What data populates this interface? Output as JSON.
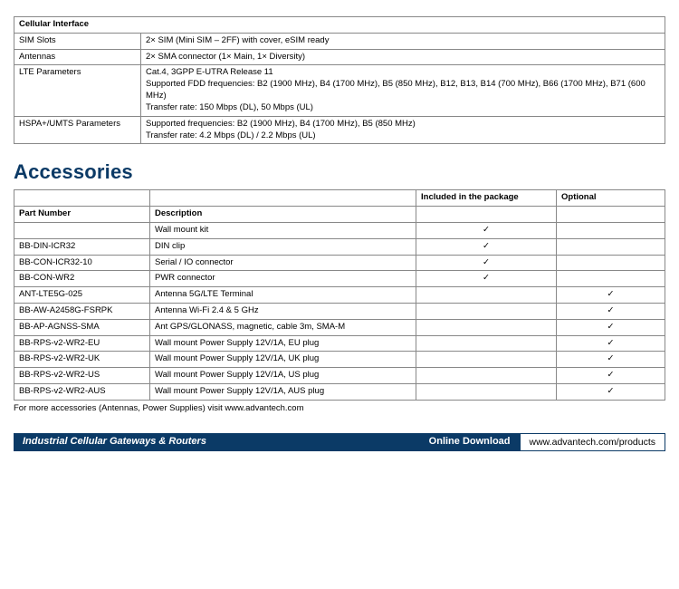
{
  "colors": {
    "brand": "#0b3a66",
    "border": "#888888",
    "text": "#000000",
    "bg": "#ffffff"
  },
  "cellular": {
    "header": "Cellular Interface",
    "rows": [
      {
        "label": "SIM Slots",
        "value": "2× SIM (Mini SIM – 2FF) with cover, eSIM ready"
      },
      {
        "label": "Antennas",
        "value": "2× SMA connector (1× Main, 1× Diversity)"
      },
      {
        "label": "LTE Parameters",
        "value": "Cat.4, 3GPP E-UTRA Release 11\nSupported FDD frequencies: B2 (1900 MHz), B4 (1700 MHz), B5 (850 MHz), B12, B13, B14 (700 MHz), B66 (1700 MHz), B71 (600 MHz)\nTransfer rate: 150 Mbps (DL), 50 Mbps (UL)"
      },
      {
        "label": "HSPA+/UMTS Parameters",
        "value": "Supported frequencies: B2 (1900 MHz), B4 (1700 MHz), B5 (850 MHz)\nTransfer rate: 4.2 Mbps (DL) / 2.2 Mbps (UL)"
      }
    ]
  },
  "accessories": {
    "title": "Accessories",
    "columns": {
      "pn": "Part Number",
      "desc": "Description",
      "included": "Included in the package",
      "optional": "Optional"
    },
    "rows": [
      {
        "pn": "",
        "desc": "Wall mount kit",
        "inc": "✓",
        "opt": ""
      },
      {
        "pn": "BB-DIN-ICR32",
        "desc": "DIN clip",
        "inc": "✓",
        "opt": ""
      },
      {
        "pn": "BB-CON-ICR32-10",
        "desc": "Serial / IO connector",
        "inc": "✓",
        "opt": ""
      },
      {
        "pn": "BB-CON-WR2",
        "desc": "PWR connector",
        "inc": "✓",
        "opt": ""
      },
      {
        "pn": "ANT-LTE5G-025",
        "desc": "Antenna 5G/LTE Terminal",
        "inc": "",
        "opt": "✓"
      },
      {
        "pn": "BB-AW-A2458G-FSRPK",
        "desc": "Antenna Wi-Fi 2.4 & 5 GHz",
        "inc": "",
        "opt": "✓"
      },
      {
        "pn": "BB-AP-AGNSS-SMA",
        "desc": "Ant GPS/GLONASS, magnetic, cable 3m, SMA-M",
        "inc": "",
        "opt": "✓"
      },
      {
        "pn": "BB-RPS-v2-WR2-EU",
        "desc": "Wall mount Power Supply 12V/1A, EU plug",
        "inc": "",
        "opt": "✓"
      },
      {
        "pn": "BB-RPS-v2-WR2-UK",
        "desc": "Wall mount Power Supply 12V/1A, UK plug",
        "inc": "",
        "opt": "✓"
      },
      {
        "pn": "BB-RPS-v2-WR2-US",
        "desc": "Wall mount Power Supply 12V/1A, US plug",
        "inc": "",
        "opt": "✓"
      },
      {
        "pn": "BB-RPS-v2-WR2-AUS",
        "desc": "Wall mount Power Supply 12V/1A, AUS plug",
        "inc": "",
        "opt": "✓"
      }
    ],
    "footnote": "For more accessories (Antennas, Power Supplies) visit www.advantech.com"
  },
  "footer": {
    "left": "Industrial Cellular Gateways & Routers",
    "mid": "Online Download",
    "right": "www.advantech.com/products"
  }
}
